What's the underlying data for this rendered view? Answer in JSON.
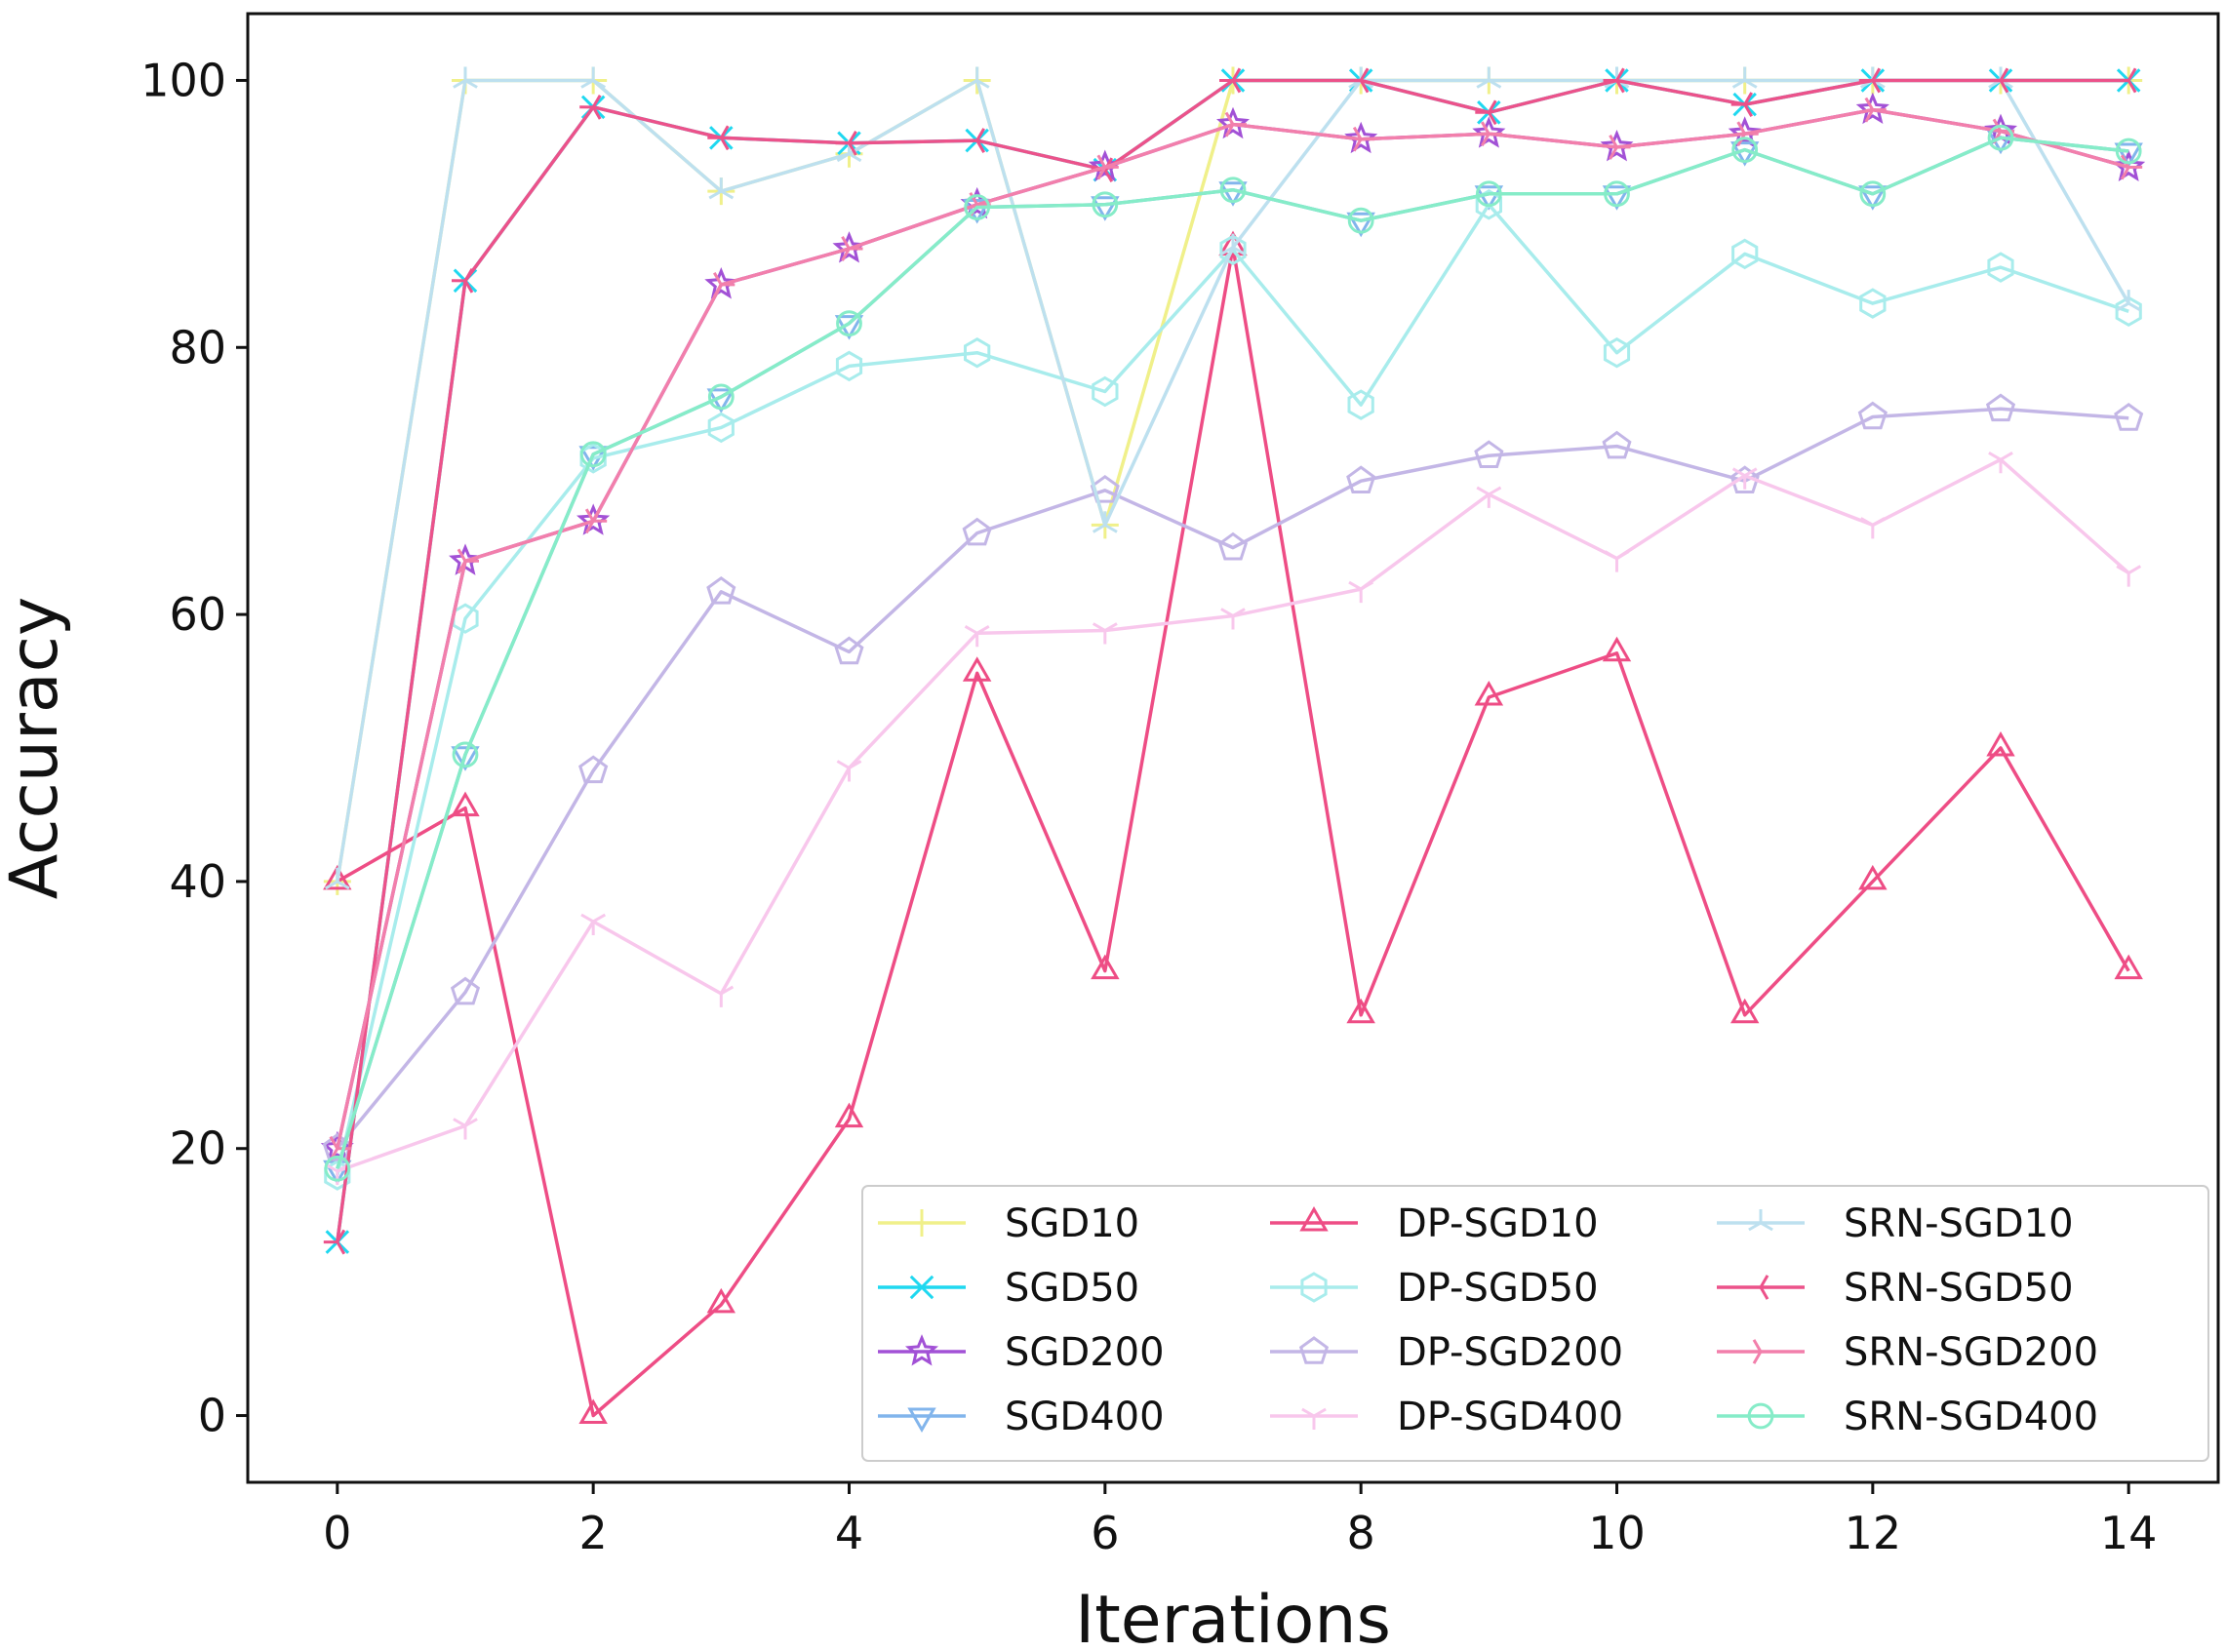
{
  "chart_data": {
    "type": "line",
    "title": "",
    "xlabel": "Iterations",
    "ylabel": "Accuracy",
    "xlim": [
      -0.7,
      14.7
    ],
    "ylim": [
      -5,
      105
    ],
    "xticks": [
      "0",
      "2",
      "4",
      "6",
      "8",
      "10",
      "12",
      "14"
    ],
    "yticks": [
      "0",
      "20",
      "40",
      "60",
      "80",
      "100"
    ],
    "legend_position": "lower-right",
    "x": [
      0,
      1,
      2,
      3,
      4,
      5,
      6,
      7,
      8,
      9,
      10,
      11,
      12,
      13,
      14
    ],
    "series": [
      {
        "name": "SGD10",
        "color": "#f0f08a",
        "marker": "plus",
        "values": [
          40,
          100,
          100,
          91.7,
          94.5,
          100,
          66.7,
          100,
          100,
          100,
          100,
          100,
          100,
          100,
          100
        ]
      },
      {
        "name": "SGD50",
        "color": "#1fd8f0",
        "marker": "x",
        "values": [
          13,
          85,
          98,
          95.7,
          95.3,
          95.5,
          93.3,
          100,
          100,
          97.6,
          100,
          98.2,
          100,
          100,
          100
        ]
      },
      {
        "name": "SGD200",
        "color": "#a251d6",
        "marker": "star",
        "values": [
          20,
          64,
          67,
          84.7,
          87.4,
          90.7,
          93.5,
          96.7,
          95.6,
          96,
          95,
          96,
          97.8,
          96.2,
          93.5
        ]
      },
      {
        "name": "SGD400",
        "color": "#82b5ec",
        "marker": "triangle-down",
        "values": [
          18.5,
          49.5,
          72,
          76.3,
          81.8,
          90.5,
          90.7,
          91.8,
          89.5,
          91.5,
          91.5,
          94.8,
          91.5,
          95.7,
          94.7
        ]
      },
      {
        "name": "DP-SGD10",
        "color": "#ee4d85",
        "marker": "triangle-up",
        "values": [
          40,
          45.5,
          0,
          8.3,
          22.2,
          55.6,
          33.3,
          87.5,
          30,
          53.8,
          57.1,
          30,
          40,
          50,
          33.3
        ]
      },
      {
        "name": "DP-SGD50",
        "color": "#a8ecec",
        "marker": "hexagon",
        "values": [
          18,
          59.7,
          71.7,
          74,
          78.6,
          79.6,
          76.7,
          87.3,
          75.7,
          90.7,
          79.6,
          87,
          83.3,
          86,
          82.7
        ]
      },
      {
        "name": "DP-SGD200",
        "color": "#c3b6e6",
        "marker": "pentagon",
        "values": [
          20,
          31.7,
          48.3,
          61.7,
          57.2,
          66.1,
          69.3,
          65,
          70,
          71.9,
          72.6,
          70,
          74.8,
          75.4,
          74.7
        ]
      },
      {
        "name": "DP-SGD400",
        "color": "#f8c7ec",
        "marker": "tri-down",
        "values": [
          18.3,
          21.7,
          37,
          31.6,
          48.5,
          58.6,
          58.8,
          59.9,
          61.9,
          69,
          64.2,
          70.4,
          66.7,
          71.6,
          63.1
        ]
      },
      {
        "name": "SRN-SGD10",
        "color": "#bde0ef",
        "marker": "tri-up",
        "values": [
          40,
          100,
          100,
          91.7,
          94.5,
          100,
          66.7,
          87.5,
          100,
          100,
          100,
          100,
          100,
          100,
          83.3
        ]
      },
      {
        "name": "SRN-SGD50",
        "color": "#ec528a",
        "marker": "tri-left",
        "values": [
          13,
          85,
          98,
          95.7,
          95.3,
          95.5,
          93.3,
          100,
          100,
          97.6,
          100,
          98.2,
          100,
          100,
          100
        ]
      },
      {
        "name": "SRN-SGD200",
        "color": "#f27fab",
        "marker": "tri-right",
        "values": [
          20,
          64,
          67,
          84.7,
          87.4,
          90.7,
          93.5,
          96.7,
          95.6,
          96,
          95,
          96,
          97.8,
          96.2,
          93.5
        ]
      },
      {
        "name": "SRN-SGD400",
        "color": "#86ecc8",
        "marker": "circle",
        "values": [
          18.5,
          49.5,
          72,
          76.3,
          81.8,
          90.5,
          90.7,
          91.8,
          89.5,
          91.5,
          91.5,
          94.8,
          91.5,
          95.7,
          94.7
        ]
      }
    ]
  }
}
